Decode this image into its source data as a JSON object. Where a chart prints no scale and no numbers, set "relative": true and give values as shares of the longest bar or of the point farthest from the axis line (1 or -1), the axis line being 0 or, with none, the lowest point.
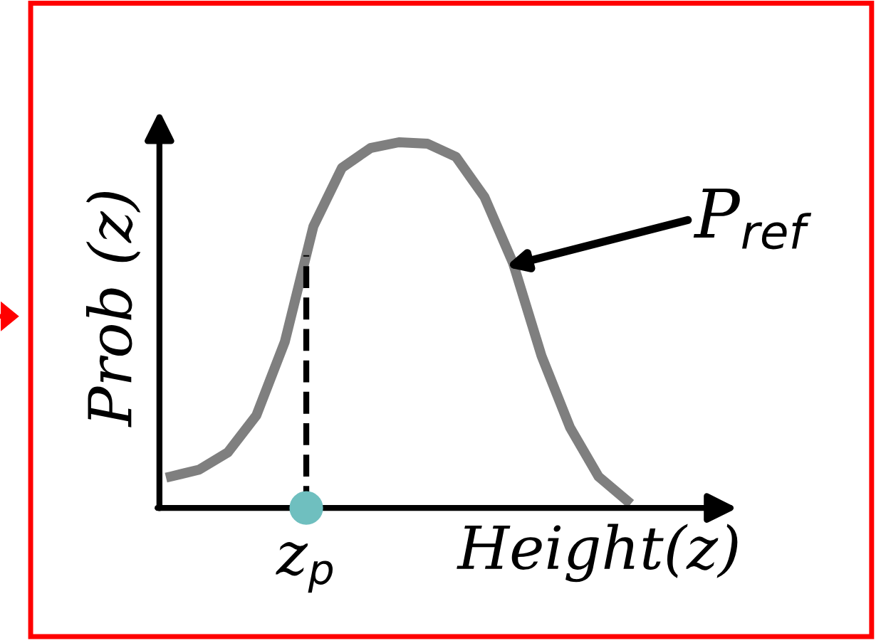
{
  "chart_data": {
    "type": "line",
    "relative": true,
    "xlabel": "Height(z)",
    "ylabel": "Prob (z)",
    "categories": [
      null,
      null,
      null,
      null,
      null,
      null,
      null,
      null,
      null,
      null,
      null,
      null,
      null,
      null,
      null,
      null,
      null
    ],
    "series": [
      {
        "name": "P$_{ref}$",
        "color": "#7f7f7f",
        "values": [
          0.086,
          0.105,
          0.152,
          0.253,
          0.455,
          0.77,
          0.93,
          0.984,
          1.0,
          0.996,
          0.96,
          0.85,
          0.67,
          0.416,
          0.22,
          0.086,
          0.02
        ]
      }
    ],
    "annotations": [
      "z$_{p}$"
    ],
    "legend": false,
    "marker": "none",
    "line_style": "solid"
  }
}
